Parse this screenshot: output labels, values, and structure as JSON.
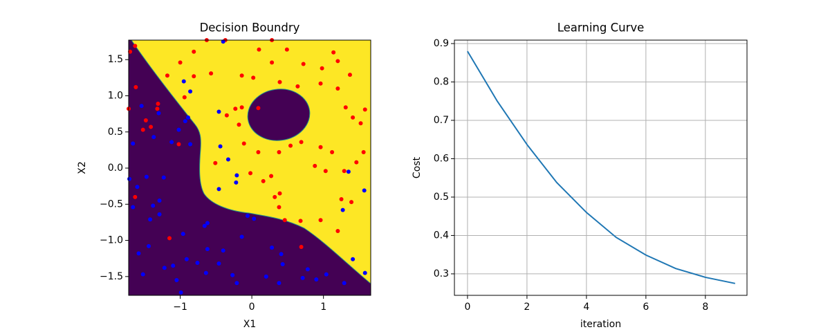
{
  "chart_data": [
    {
      "type": "scatter",
      "title": "Decision Boundry",
      "xlabel": "X1",
      "ylabel": "X2",
      "xlim": [
        -1.72,
        1.66
      ],
      "ylim": [
        -1.76,
        1.77
      ],
      "xticks": [
        {
          "value": -1,
          "label": "−1"
        },
        0,
        1
      ],
      "yticks": [
        {
          "value": -1.5,
          "label": "−1.5"
        },
        {
          "value": -1,
          "label": "−1.0"
        },
        {
          "value": -0.5,
          "label": "−0.5"
        },
        {
          "value": 0,
          "label": "0.0"
        },
        0.5,
        {
          "value": 1,
          "label": "1.0"
        },
        1.5
      ],
      "grid": false,
      "series": [
        {
          "color": "#ff0000",
          "x": [
            -1.63,
            -1.7,
            -1.62,
            -1.72,
            -1.48,
            -1.52,
            -1.41,
            -1.31,
            -1.63,
            -1.15,
            -1.02,
            -1.18,
            -1.0,
            -0.81,
            -0.63,
            -0.57,
            -0.81,
            -0.94,
            -0.37,
            0.1,
            0.28,
            0.49,
            -0.14,
            0.02,
            0.09,
            -0.14,
            -0.23,
            -0.35,
            -0.11,
            0.09,
            0.38,
            0.54,
            0.69,
            0.96,
            1.12,
            0.88,
            1.03,
            1.29,
            1.46,
            1.56,
            1.52,
            1.58,
            1.67,
            1.41,
            1.31,
            1.2,
            0.96,
            0.98,
            1.14,
            1.2,
            1.37,
            0.72,
            0.28,
            0.39,
            0.64,
            0.27,
            0.16,
            0.32,
            0.38,
            0.39,
            0.46,
            0.68,
            0.96,
            1.2,
            0.69,
            1.25,
            1.39,
            -0.02,
            -0.18,
            -0.51,
            -1.32
          ],
          "y": [
            1.69,
            1.61,
            1.12,
            0.82,
            0.66,
            0.53,
            0.57,
            0.89,
            -0.4,
            -0.97,
            0.33,
            1.28,
            1.46,
            1.61,
            1.77,
            1.31,
            1.27,
            0.98,
            1.77,
            1.64,
            1.77,
            1.64,
            1.28,
            1.25,
            0.83,
            0.84,
            0.82,
            0.73,
            0.34,
            0.22,
            0.22,
            0.31,
            0.36,
            0.29,
            0.22,
            0.03,
            -0.04,
            -0.04,
            0.08,
            0.22,
            0.62,
            0.81,
            0.79,
            0.7,
            0.84,
            1.1,
            1.17,
            1.38,
            1.6,
            1.48,
            1.29,
            1.44,
            1.46,
            1.19,
            1.13,
            -0.11,
            -0.18,
            -0.4,
            -0.54,
            -0.35,
            -0.72,
            -0.73,
            -0.72,
            -0.87,
            -1.09,
            -0.43,
            -0.47,
            -0.07,
            0.6,
            0.07,
            0.82
          ]
        },
        {
          "color": "#0000ff",
          "x": [
            -0.4,
            -0.95,
            -0.86,
            -1.3,
            -1.54,
            -1.37,
            -1.47,
            -1.23,
            -0.93,
            -0.89,
            -1.02,
            -0.86,
            -1.12,
            -1.66,
            -1.71,
            -1.6,
            -1.66,
            -1.38,
            -1.29,
            -1.42,
            -1.29,
            -1.44,
            -1.58,
            -1.52,
            -1.22,
            -1.1,
            -1.05,
            -0.91,
            -0.96,
            -0.66,
            -0.62,
            -0.62,
            -0.4,
            -0.46,
            -0.64,
            -0.27,
            -0.21,
            -0.14,
            -0.06,
            0.03,
            0.28,
            0.41,
            0.43,
            0.2,
            0.71,
            0.9,
            1.04,
            1.29,
            1.41,
            1.58,
            1.27,
            1.57,
            1.35,
            -0.46,
            -0.44,
            -0.46,
            -0.33,
            -0.22,
            -0.21,
            0.38,
            -0.99,
            -0.76,
            0.78
          ],
          "y": [
            1.75,
            1.2,
            1.06,
            0.76,
            0.86,
            0.43,
            -0.12,
            -0.13,
            0.65,
            0.7,
            0.53,
            0.33,
            0.36,
            0.34,
            -0.15,
            -0.26,
            -0.54,
            -0.52,
            -0.45,
            -0.71,
            -0.64,
            -1.08,
            -1.18,
            -1.47,
            -1.38,
            -1.35,
            -1.55,
            -1.26,
            -0.91,
            -0.8,
            -0.76,
            -1.12,
            -1.14,
            -1.32,
            -1.45,
            -1.48,
            -1.59,
            -0.95,
            -0.66,
            -0.7,
            -1.1,
            -1.19,
            -1.33,
            -1.5,
            -1.52,
            -1.54,
            -1.47,
            -1.59,
            -1.26,
            -1.45,
            -0.58,
            -0.31,
            -0.05,
            0.78,
            0.3,
            -0.29,
            0.12,
            -0.2,
            -0.1,
            -1.59,
            -1.72,
            -1.31,
            -1.4
          ]
        }
      ]
    },
    {
      "type": "line",
      "title": "Learning Curve",
      "xlabel": "iteration",
      "ylabel": "Cost",
      "xlim": [
        -0.44,
        9.4
      ],
      "ylim": [
        0.244,
        0.909
      ],
      "xticks": [
        0,
        2,
        4,
        6,
        8
      ],
      "yticks": [
        0.3,
        0.4,
        0.5,
        0.6,
        0.7,
        0.8,
        0.9
      ],
      "grid": true,
      "x": [
        0,
        1,
        2,
        3,
        4,
        5,
        6,
        7,
        8,
        9
      ],
      "series": [
        {
          "color": "#1f77b4",
          "values": [
            0.88,
            0.75,
            0.637,
            0.538,
            0.46,
            0.395,
            0.349,
            0.314,
            0.291,
            0.275
          ]
        }
      ]
    }
  ]
}
